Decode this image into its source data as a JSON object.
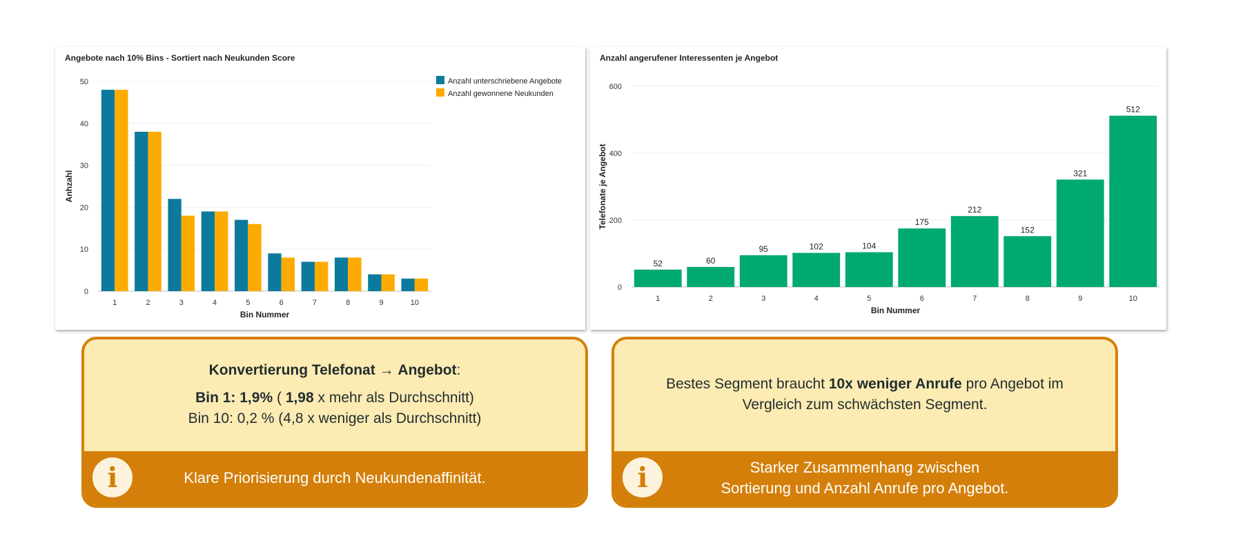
{
  "chart_data": [
    {
      "type": "bar",
      "title": "Angebote nach 10% Bins - Sortiert nach Neukunden Score",
      "xlabel": "Bin Nummer",
      "ylabel": "Anhzahl",
      "ylim": [
        0,
        50
      ],
      "yticks": [
        0,
        10,
        20,
        30,
        40,
        50
      ],
      "legend": "top-right",
      "grid": true,
      "categories": [
        "1",
        "2",
        "3",
        "4",
        "5",
        "6",
        "7",
        "8",
        "9",
        "10"
      ],
      "series": [
        {
          "name": "Anzahl unterschriebene Angebote",
          "color": "#0b7a9c",
          "values": [
            48,
            38,
            22,
            19,
            17,
            9,
            7,
            8,
            4,
            3
          ]
        },
        {
          "name": "Anzahl gewonnene Neukunden",
          "color": "#fdab00",
          "values": [
            48,
            38,
            18,
            19,
            16,
            8,
            7,
            8,
            4,
            3
          ]
        }
      ]
    },
    {
      "type": "bar",
      "title": "Anzahl angerufener Interessenten je Angebot",
      "xlabel": "Bin Nummer",
      "ylabel": "Telefonate je Angebot",
      "ylim": [
        0,
        600
      ],
      "yticks": [
        0,
        200,
        400,
        600
      ],
      "grid": true,
      "categories": [
        "1",
        "2",
        "3",
        "4",
        "5",
        "6",
        "7",
        "8",
        "9",
        "10"
      ],
      "series": [
        {
          "name": "Telefonate je Angebot",
          "color": "#00a96e",
          "values": [
            52,
            60,
            95,
            102,
            104,
            175,
            212,
            152,
            321,
            512
          ]
        }
      ]
    }
  ],
  "box_left": {
    "heading": "Konvertierung Telefonat",
    "heading_arrow": "→",
    "heading_bold2": "Angebot",
    "heading_colon": ":",
    "line1_bold": "Bin  1: 1,9%",
    "line1_mid": " ( ",
    "line1_bold2": "1,98",
    "line1_rest": " x mehr als Durchschnitt)",
    "line2": "Bin 10: 0,2 % (4,8 x weniger als Durchschnitt)",
    "info": "Klare Priorisierung durch Neukundenaffinität."
  },
  "box_right": {
    "pre": "Bestes Segment braucht ",
    "bold": "10x weniger Anrufe",
    "post": " pro Angebot im",
    "line2": "Vergleich zum schwächsten Segment.",
    "info_line1": "Starker Zusammenhang zwischen",
    "info_line2": "Sortierung und Anzahl Anrufe pro Angebot."
  },
  "icon": "i"
}
